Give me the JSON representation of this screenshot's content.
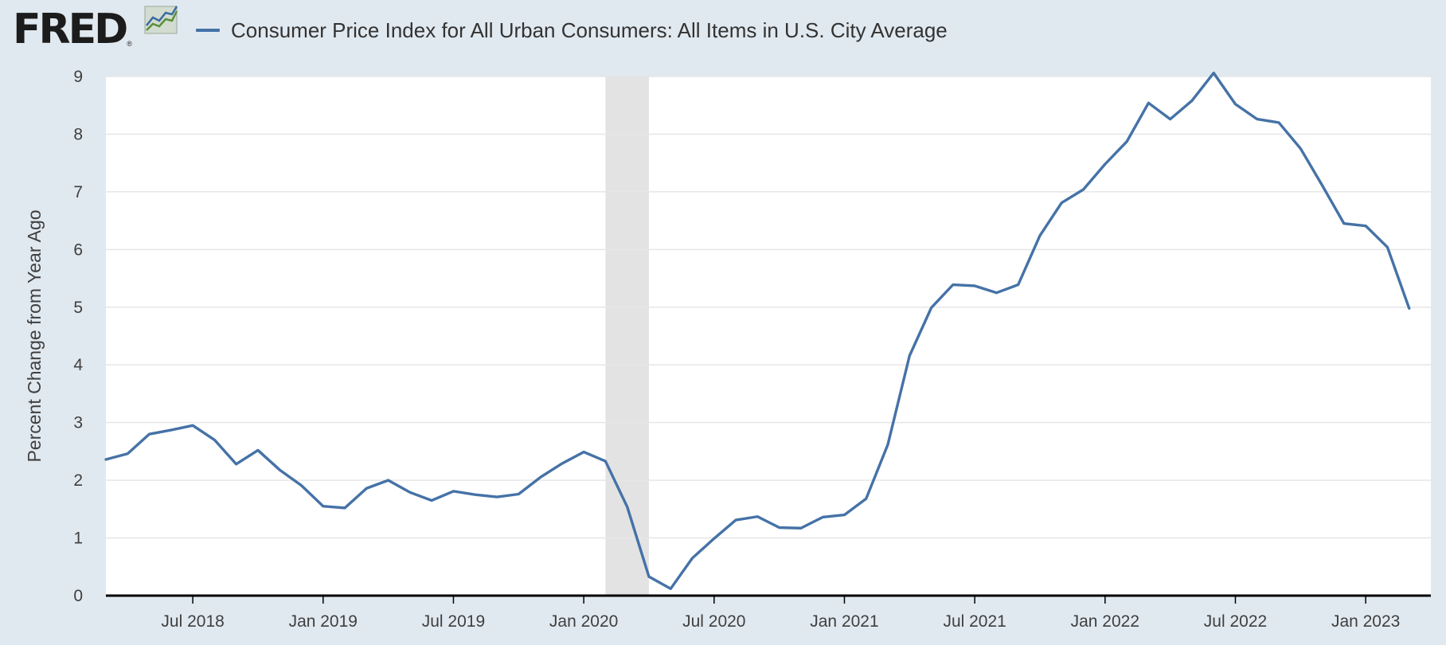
{
  "header": {
    "logo_text": "FRED",
    "logo_mark": "®",
    "logo_icon": "line-chart-icon",
    "series_label": "Consumer Price Index for All Urban Consumers: All Items in U.S. City Average"
  },
  "colors": {
    "background": "#e1e9f0",
    "plot_background": "#ffffff",
    "line": "#4572a7",
    "recession": "#e3e3e3",
    "grid": "#e6e6e6",
    "axis": "#000000"
  },
  "chart_data": {
    "type": "line",
    "title": "",
    "xlabel": "",
    "ylabel": "Percent Change from Year Ago",
    "ylim": [
      0,
      9
    ],
    "yticks": [
      0,
      1,
      2,
      3,
      4,
      5,
      6,
      7,
      8,
      9
    ],
    "xlim": [
      "2018-03",
      "2023-04"
    ],
    "xticks": [
      {
        "date": "2018-07",
        "label": "Jul 2018"
      },
      {
        "date": "2019-01",
        "label": "Jan 2019"
      },
      {
        "date": "2019-07",
        "label": "Jul 2019"
      },
      {
        "date": "2020-01",
        "label": "Jan 2020"
      },
      {
        "date": "2020-07",
        "label": "Jul 2020"
      },
      {
        "date": "2021-01",
        "label": "Jan 2021"
      },
      {
        "date": "2021-07",
        "label": "Jul 2021"
      },
      {
        "date": "2022-01",
        "label": "Jan 2022"
      },
      {
        "date": "2022-07",
        "label": "Jul 2022"
      },
      {
        "date": "2023-01",
        "label": "Jan 2023"
      }
    ],
    "grid": true,
    "legend": "top-left",
    "shaded_periods": [
      {
        "start": "2020-02",
        "end": "2020-04",
        "label": "recession"
      }
    ],
    "series": [
      {
        "name": "Consumer Price Index for All Urban Consumers: All Items in U.S. City Average",
        "x": [
          "2018-03",
          "2018-04",
          "2018-05",
          "2018-06",
          "2018-07",
          "2018-08",
          "2018-09",
          "2018-10",
          "2018-11",
          "2018-12",
          "2019-01",
          "2019-02",
          "2019-03",
          "2019-04",
          "2019-05",
          "2019-06",
          "2019-07",
          "2019-08",
          "2019-09",
          "2019-10",
          "2019-11",
          "2019-12",
          "2020-01",
          "2020-02",
          "2020-03",
          "2020-04",
          "2020-05",
          "2020-06",
          "2020-07",
          "2020-08",
          "2020-09",
          "2020-10",
          "2020-11",
          "2020-12",
          "2021-01",
          "2021-02",
          "2021-03",
          "2021-04",
          "2021-05",
          "2021-06",
          "2021-07",
          "2021-08",
          "2021-09",
          "2021-10",
          "2021-11",
          "2021-12",
          "2022-01",
          "2022-02",
          "2022-03",
          "2022-04",
          "2022-05",
          "2022-06",
          "2022-07",
          "2022-08",
          "2022-09",
          "2022-10",
          "2022-11",
          "2022-12",
          "2023-01",
          "2023-02",
          "2023-03"
        ],
        "values": [
          2.36,
          2.46,
          2.8,
          2.87,
          2.95,
          2.7,
          2.28,
          2.52,
          2.18,
          1.91,
          1.55,
          1.52,
          1.86,
          2.0,
          1.79,
          1.65,
          1.81,
          1.75,
          1.71,
          1.76,
          2.05,
          2.29,
          2.49,
          2.33,
          1.54,
          0.33,
          0.12,
          0.65,
          0.99,
          1.31,
          1.37,
          1.18,
          1.17,
          1.36,
          1.4,
          1.68,
          2.62,
          4.16,
          4.99,
          5.39,
          5.37,
          5.25,
          5.39,
          6.24,
          6.81,
          7.04,
          7.48,
          7.87,
          8.54,
          8.26,
          8.58,
          9.06,
          8.52,
          8.26,
          8.2,
          7.75,
          7.11,
          6.45,
          6.41,
          6.04,
          4.98
        ]
      }
    ]
  }
}
